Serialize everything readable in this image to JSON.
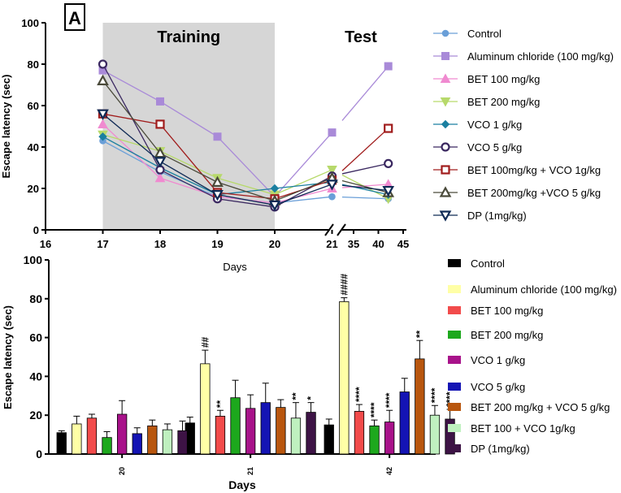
{
  "panel_label": "A",
  "chart_data": [
    {
      "type": "line",
      "title": "",
      "regions": [
        {
          "label": "Training",
          "x_from": 17,
          "x_to": 20
        },
        {
          "label": "Test",
          "x_from": 21,
          "x_to": 42
        }
      ],
      "xlabel": "Days",
      "ylabel": "Escape latency (sec)",
      "ylim": [
        0,
        100
      ],
      "y_ticks": [
        "0",
        "20",
        "40",
        "60",
        "80",
        "100"
      ],
      "x_ticks_left": [
        "16",
        "17",
        "18",
        "19",
        "20",
        "21"
      ],
      "x_ticks_right": [
        "35",
        "40",
        "45"
      ],
      "x": [
        17,
        18,
        19,
        20,
        21,
        42
      ],
      "series": [
        {
          "name": "Control",
          "color": "#6a9fd8",
          "marker": "circle",
          "values": [
            43,
            28,
            16,
            13,
            16,
            15
          ]
        },
        {
          "name": "Aluminum chloride (100 mg/kg)",
          "color": "#a98ad8",
          "marker": "square",
          "values": [
            77,
            62,
            45,
            16,
            47,
            79
          ]
        },
        {
          "name": "BET 100 mg/kg",
          "color": "#f08ad0",
          "marker": "triangle-up",
          "values": [
            51,
            25,
            16,
            13,
            20,
            22
          ]
        },
        {
          "name": "BET 200 mg/kg",
          "color": "#b7d96b",
          "marker": "triangle-down",
          "values": [
            46,
            38,
            25,
            17,
            29,
            15
          ]
        },
        {
          "name": "VCO 1 g/kg",
          "color": "#1a7fa0",
          "marker": "diamond",
          "values": [
            45,
            30,
            17,
            20,
            23,
            17
          ]
        },
        {
          "name": "VCO 5 g/kg",
          "color": "#3a2860",
          "marker": "circle-open",
          "values": [
            80,
            29,
            15,
            11,
            26,
            32
          ]
        },
        {
          "name": "BET 100mg/kg + VCO 1g/kg",
          "color": "#a01c1c",
          "marker": "square-open",
          "values": [
            56,
            51,
            18,
            15,
            24,
            49
          ]
        },
        {
          "name": "BET 200mg/kg +VCO 5 g/kg",
          "color": "#4a4a3a",
          "marker": "triangle-open",
          "values": [
            72,
            37,
            23,
            14,
            25,
            18
          ]
        },
        {
          "name": "DP (1mg/kg)",
          "color": "#0f2a55",
          "marker": "triangle-down-open",
          "values": [
            56,
            33,
            17,
            12,
            22,
            19
          ]
        }
      ]
    },
    {
      "type": "bar",
      "xlabel": "Days",
      "ylabel": "Escape latency (sec)",
      "ylim": [
        0,
        100
      ],
      "y_ticks": [
        "0",
        "20",
        "40",
        "60",
        "80",
        "100"
      ],
      "categories": [
        "20",
        "21",
        "42"
      ],
      "series": [
        {
          "name": "Control",
          "color": "#000000",
          "values": [
            11,
            16,
            15
          ],
          "errors": [
            1,
            3,
            3
          ],
          "sig": [
            "",
            "",
            ""
          ]
        },
        {
          "name": "Aluminum chloride (100 mg/kg)",
          "color": "#ffffa6",
          "values": [
            15.5,
            46.5,
            78.5
          ],
          "errors": [
            4,
            7,
            2
          ],
          "sig": [
            "",
            "##",
            "####"
          ]
        },
        {
          "name": "BET 100 mg/kg",
          "color": "#f24b4b",
          "values": [
            18.5,
            19.5,
            22
          ],
          "errors": [
            2,
            3,
            3.5
          ],
          "sig": [
            "",
            "**",
            "****"
          ]
        },
        {
          "name": "BET 200 mg/kg",
          "color": "#1da81d",
          "values": [
            8.5,
            29,
            14.5
          ],
          "errors": [
            3,
            9,
            3
          ],
          "sig": [
            "",
            "",
            "****"
          ]
        },
        {
          "name": "VCO 1 g/kg",
          "color": "#a8128a",
          "values": [
            20.5,
            23.5,
            16.5
          ],
          "errors": [
            7,
            7,
            6
          ],
          "sig": [
            "",
            "",
            "****"
          ]
        },
        {
          "name": "VCO 5 g/kg",
          "color": "#1414b4",
          "values": [
            10.5,
            26.5,
            32
          ],
          "errors": [
            3,
            10,
            7
          ],
          "sig": [
            "",
            "",
            ""
          ]
        },
        {
          "name": "BET 200 mg/kg + VCO 5 g/kg",
          "color": "#b8560e",
          "values": [
            14.5,
            24,
            49
          ],
          "errors": [
            3,
            4,
            9.5
          ],
          "sig": [
            "",
            "",
            "**"
          ]
        },
        {
          "name": "BET 100 + VCO 1g/kg",
          "color": "#bff0bf",
          "values": [
            12.5,
            18.5,
            20
          ],
          "errors": [
            3,
            8,
            5
          ],
          "sig": [
            "",
            "**",
            "****"
          ]
        },
        {
          "name": "DP (1mg/kg)",
          "color": "#3d1345",
          "values": [
            12,
            21.5,
            18
          ],
          "errors": [
            5,
            5,
            5
          ],
          "sig": [
            "",
            "*",
            "****"
          ]
        }
      ]
    }
  ]
}
